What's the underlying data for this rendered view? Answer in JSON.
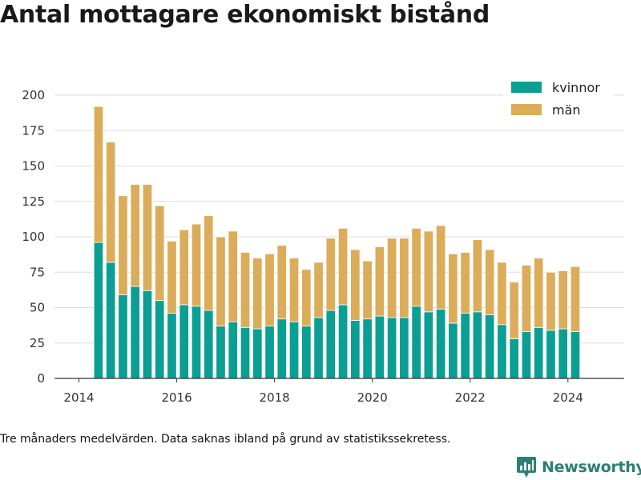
{
  "title": "Antal mottagare ekonomiskt bistånd",
  "footnote": "Tre månaders medelvärden. Data saknas ibland på grund av statistikssekretess.",
  "brand": "Newsworthy",
  "colors": {
    "kvinnor": "#0b9e92",
    "man": "#dbac5a",
    "grid": "#dddddd",
    "axis": "#333333",
    "brand": "#2c7f75"
  },
  "chart_data": {
    "type": "bar",
    "stacked": true,
    "x": [
      2014.4,
      2014.65,
      2014.9,
      2015.15,
      2015.4,
      2015.65,
      2015.9,
      2016.15,
      2016.4,
      2016.65,
      2016.9,
      2017.15,
      2017.4,
      2017.65,
      2017.9,
      2018.15,
      2018.4,
      2018.65,
      2018.9,
      2019.15,
      2019.4,
      2019.65,
      2019.9,
      2020.15,
      2020.4,
      2020.65,
      2020.9,
      2021.15,
      2021.4,
      2021.65,
      2021.9,
      2022.15,
      2022.4,
      2022.65,
      2022.9,
      2023.15,
      2023.4,
      2023.65,
      2023.9,
      2024.15
    ],
    "series": [
      {
        "name": "kvinnor",
        "values": [
          96,
          82,
          59,
          65,
          62,
          55,
          46,
          52,
          51,
          48,
          37,
          40,
          36,
          35,
          37,
          42,
          40,
          37,
          43,
          48,
          52,
          41,
          42,
          44,
          43,
          43,
          51,
          47,
          49,
          39,
          46,
          47,
          45,
          38,
          28,
          33,
          36,
          34,
          35,
          33
        ]
      },
      {
        "name": "män",
        "values": [
          96,
          85,
          70,
          72,
          75,
          67,
          51,
          53,
          58,
          67,
          63,
          64,
          53,
          50,
          51,
          52,
          45,
          40,
          39,
          51,
          54,
          50,
          41,
          49,
          56,
          56,
          55,
          57,
          59,
          49,
          43,
          51,
          46,
          44,
          40,
          47,
          49,
          41,
          41,
          46
        ]
      }
    ],
    "yticks": [
      0,
      25,
      50,
      75,
      100,
      125,
      150,
      175,
      200
    ],
    "xticks": [
      2014,
      2016,
      2018,
      2020,
      2022,
      2024
    ],
    "xlim": [
      2013.5,
      2025.15
    ],
    "ylim": [
      0,
      200
    ],
    "grid": true,
    "legend_position": "top-right"
  }
}
